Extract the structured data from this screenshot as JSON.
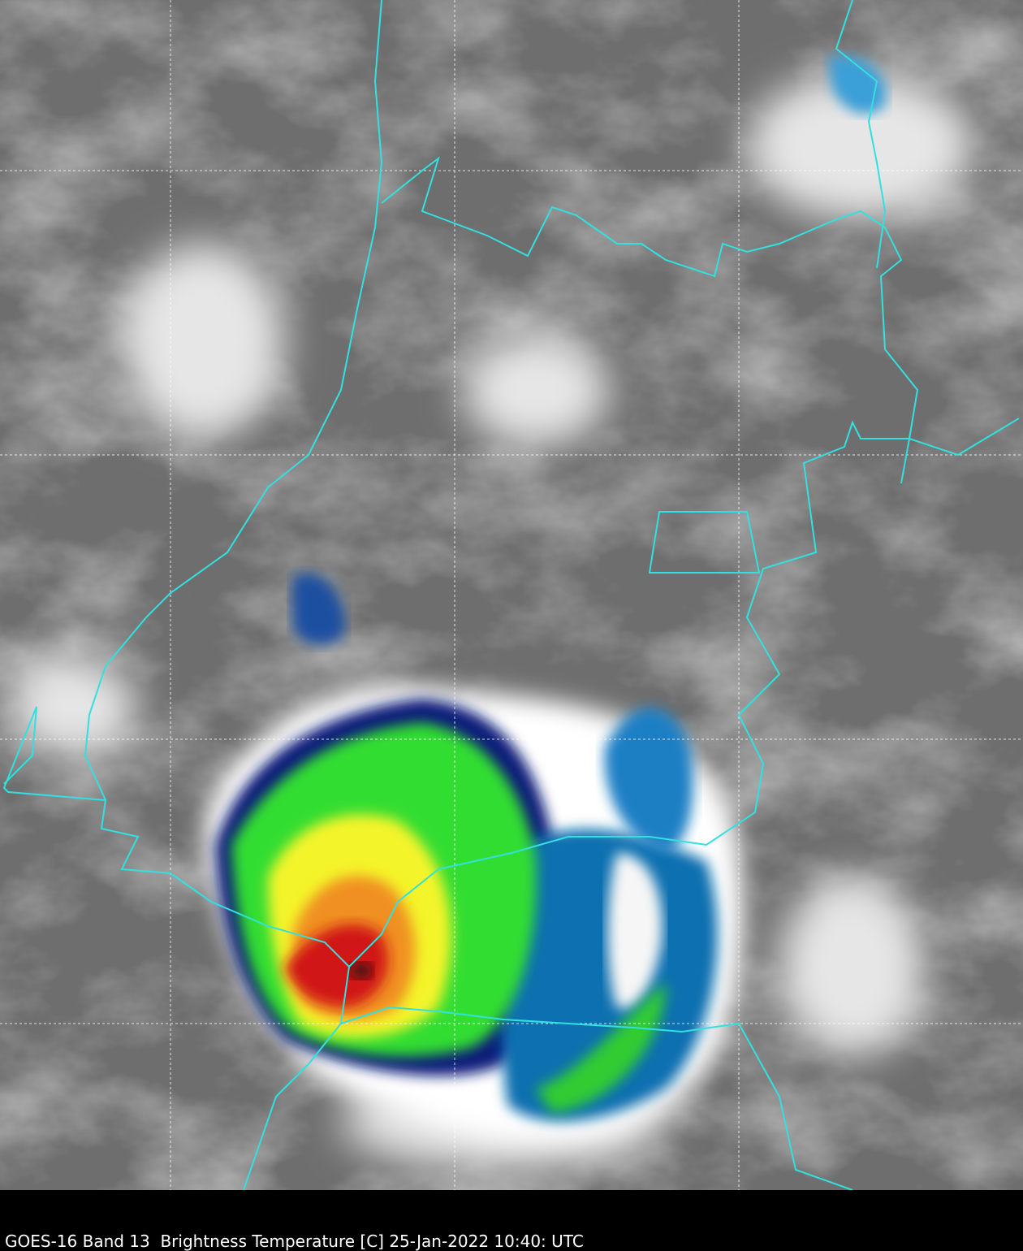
{
  "caption": "GOES-16 Band 13  Brightness Temperature [C] 25-Jan-2022 10:40: UTC"
}
